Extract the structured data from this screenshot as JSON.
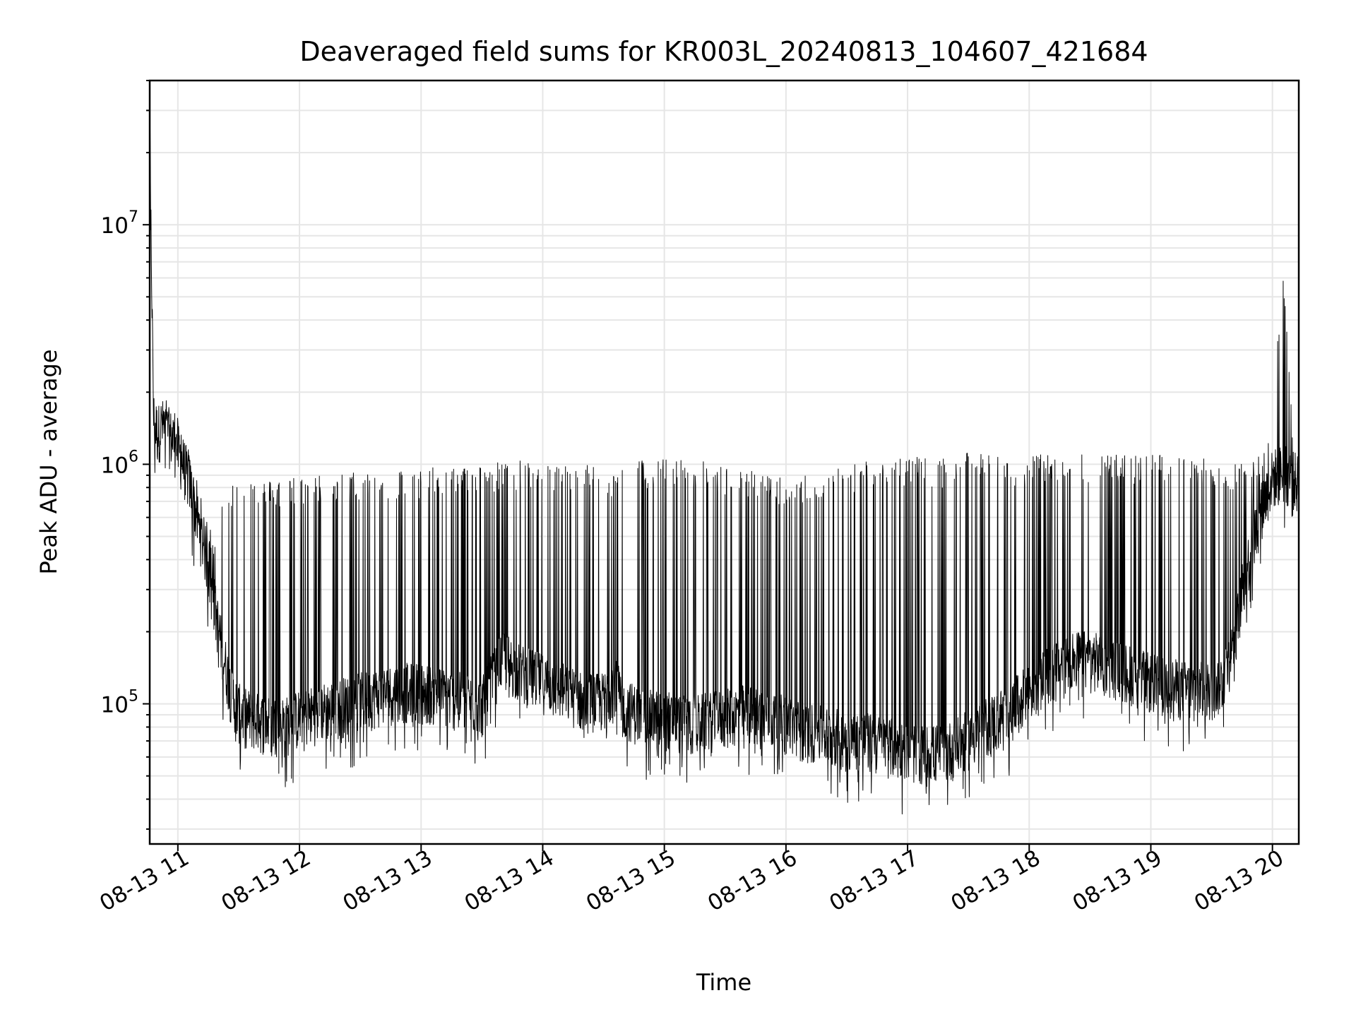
{
  "chart_data": {
    "type": "line",
    "title": "Deaveraged field sums for KR003L_20240813_104607_421684",
    "xlabel": "Time",
    "ylabel": "Peak ADU - average",
    "yscale": "log",
    "ylim": [
      26000,
      40000000
    ],
    "xlim": [
      "2024-08-13 10:46:07",
      "2024-08-13 20:13:00"
    ],
    "grid": true,
    "line_color": "#000000",
    "x_ticks": [
      "08-13 11",
      "08-13 12",
      "08-13 13",
      "08-13 14",
      "08-13 15",
      "08-13 16",
      "08-13 17",
      "08-13 18",
      "08-13 19",
      "08-13 20"
    ],
    "y_ticks": [
      {
        "value": 100000,
        "base": "10",
        "exp": "5"
      },
      {
        "value": 1000000,
        "base": "10",
        "exp": "6"
      },
      {
        "value": 10000000,
        "base": "10",
        "exp": "7"
      }
    ],
    "series": [
      {
        "x": [
          "10:46",
          "10:48",
          "10:50",
          "10:52",
          "10:55",
          "10:58",
          "11:02",
          "11:06",
          "11:10",
          "11:14",
          "11:18",
          "11:22",
          "11:26",
          "11:30",
          "11:35",
          "11:40",
          "11:45",
          "11:50",
          "11:55",
          "12:00",
          "12:10",
          "12:20",
          "12:30",
          "12:40",
          "12:50",
          "13:00",
          "13:10",
          "13:20",
          "13:30",
          "13:35",
          "13:40",
          "13:50",
          "14:00",
          "14:10",
          "14:20",
          "14:30",
          "14:35",
          "14:40",
          "14:50",
          "15:00",
          "15:10",
          "15:20",
          "15:30",
          "15:40",
          "15:50",
          "16:00",
          "16:10",
          "16:20",
          "16:30",
          "16:40",
          "16:50",
          "17:00",
          "17:10",
          "17:20",
          "17:25",
          "17:30",
          "17:40",
          "17:50",
          "18:00",
          "18:10",
          "18:20",
          "18:30",
          "18:40",
          "18:50",
          "19:00",
          "19:10",
          "19:20",
          "19:30",
          "19:35",
          "19:40",
          "19:45",
          "19:50",
          "19:55",
          "20:00",
          "20:05",
          "20:10",
          "20:13"
        ],
        "base": [
          28000000,
          1500000,
          1300000,
          1400000,
          1300000,
          1200000,
          1000000,
          800000,
          550000,
          400000,
          250000,
          160000,
          110000,
          90000,
          85000,
          82000,
          80000,
          80000,
          80000,
          85000,
          90000,
          95000,
          100000,
          105000,
          110000,
          110000,
          105000,
          100000,
          95000,
          120000,
          150000,
          130000,
          120000,
          110000,
          100000,
          100000,
          120000,
          95000,
          85000,
          85000,
          80000,
          82000,
          85000,
          90000,
          85000,
          80000,
          75000,
          72000,
          70000,
          68000,
          65000,
          62000,
          60000,
          62000,
          65000,
          70000,
          80000,
          90000,
          110000,
          130000,
          150000,
          150000,
          140000,
          130000,
          120000,
          115000,
          110000,
          112000,
          120000,
          160000,
          280000,
          450000,
          650000,
          850000,
          900000,
          850000,
          800000
        ],
        "peak": [
          30000000,
          2000000,
          2100000,
          1800000,
          1900000,
          1700000,
          1500000,
          1200000,
          800000,
          600000,
          550000,
          700000,
          850000,
          880000,
          900000,
          880000,
          860000,
          880000,
          900000,
          900000,
          910000,
          920000,
          940000,
          950000,
          960000,
          960000,
          980000,
          990000,
          1000000,
          1020000,
          1030000,
          1040000,
          1020000,
          1000000,
          1010000,
          1000000,
          950000,
          1040000,
          1050000,
          1060000,
          1050000,
          1030000,
          980000,
          950000,
          920000,
          900000,
          900000,
          950000,
          1000000,
          1050000,
          1100000,
          1080000,
          1060000,
          1050000,
          1090000,
          1120000,
          1100000,
          1080000,
          1090000,
          1100000,
          1110000,
          1120000,
          1110000,
          1100000,
          1100000,
          1090000,
          1080000,
          1050000,
          1020000,
          1000000,
          1050000,
          1100000,
          1150000,
          1500000,
          7000000,
          1600000,
          1300000
        ]
      }
    ]
  }
}
